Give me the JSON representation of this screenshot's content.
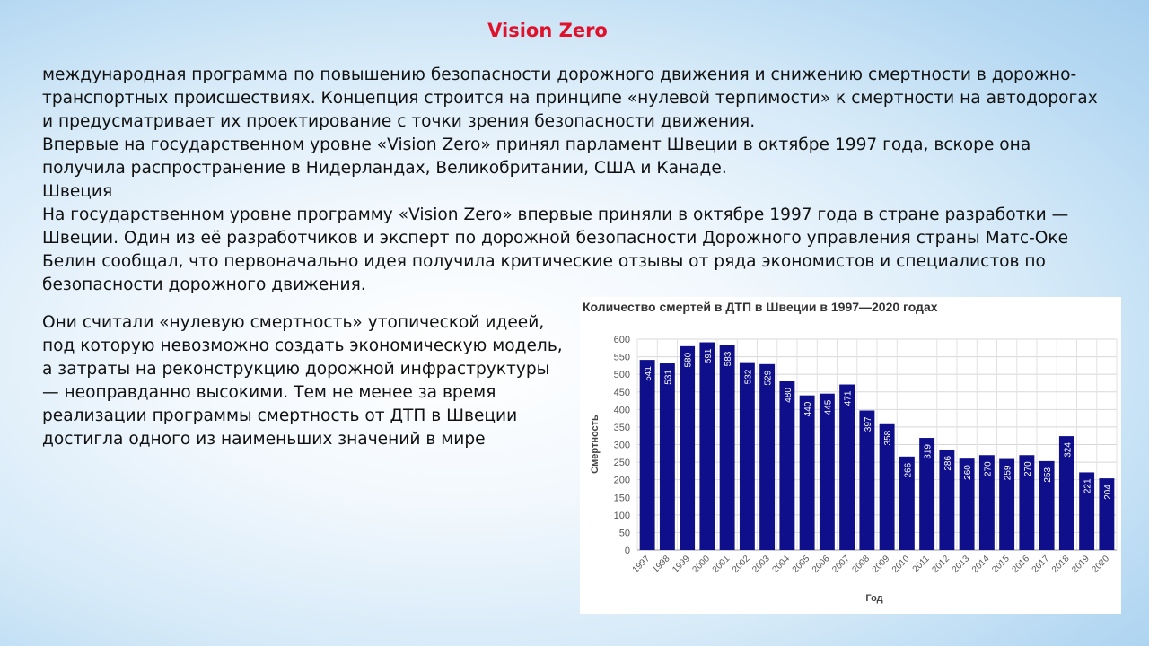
{
  "slide": {
    "title": "Vision Zero",
    "paragraphs": [
      "международная программа по повышению безопасности дорожного движения и снижению смертности в дорожно-транспортных происшествиях. Концепция строится на принципе «нулевой терпимости» к смертности на автодорогах и предусматривает их проектирование с точки зрения безопасности движения.",
      "Впервые на государственном уровне «Vision Zero» принял парламент Швеции в октябре 1997 года, вскоре она получила распространение в Нидерландах, Великобритании, США и Канаде.",
      "Швеция",
      "На государственном уровне программу «Vision Zero» впервые приняли в октябре 1997 года в стране разработки — Швеции. Один из её разработчиков и эксперт по дорожной безопасности Дорожного управления страны Матс-Оке Белин сообщал, что первоначально идея получила критические отзывы от ряда экономистов и специалистов по безопасности дорожного движения."
    ],
    "side_text": "Они считали «нулевую смертность» утопической идеей, под которую невозможно создать экономическую модель, а затраты на реконструкцию дорожной инфраструктуры — неоправданно высокими. Тем не менее за время реализации программы смертность от ДТП в Швеции достигла одного из наименьших значений в мире"
  },
  "chart_data": {
    "type": "bar",
    "title": "Количество смертей в ДТП в Швеции в 1997—2020 годах",
    "xlabel": "Год",
    "ylabel": "Смертность",
    "ylim": [
      0,
      600
    ],
    "yticks": [
      0,
      50,
      100,
      150,
      200,
      250,
      300,
      350,
      400,
      450,
      500,
      550,
      600
    ],
    "grid": true,
    "bar_color": "#0f0f8c",
    "categories": [
      "1997",
      "1998",
      "1999",
      "2000",
      "2001",
      "2002",
      "2003",
      "2004",
      "2005",
      "2006",
      "2007",
      "2008",
      "2009",
      "2010",
      "2011",
      "2012",
      "2013",
      "2014",
      "2015",
      "2016",
      "2017",
      "2018",
      "2019",
      "2020"
    ],
    "values": [
      541,
      531,
      580,
      591,
      583,
      532,
      529,
      480,
      440,
      445,
      471,
      397,
      358,
      266,
      319,
      286,
      260,
      270,
      259,
      270,
      253,
      324,
      221,
      204
    ]
  }
}
